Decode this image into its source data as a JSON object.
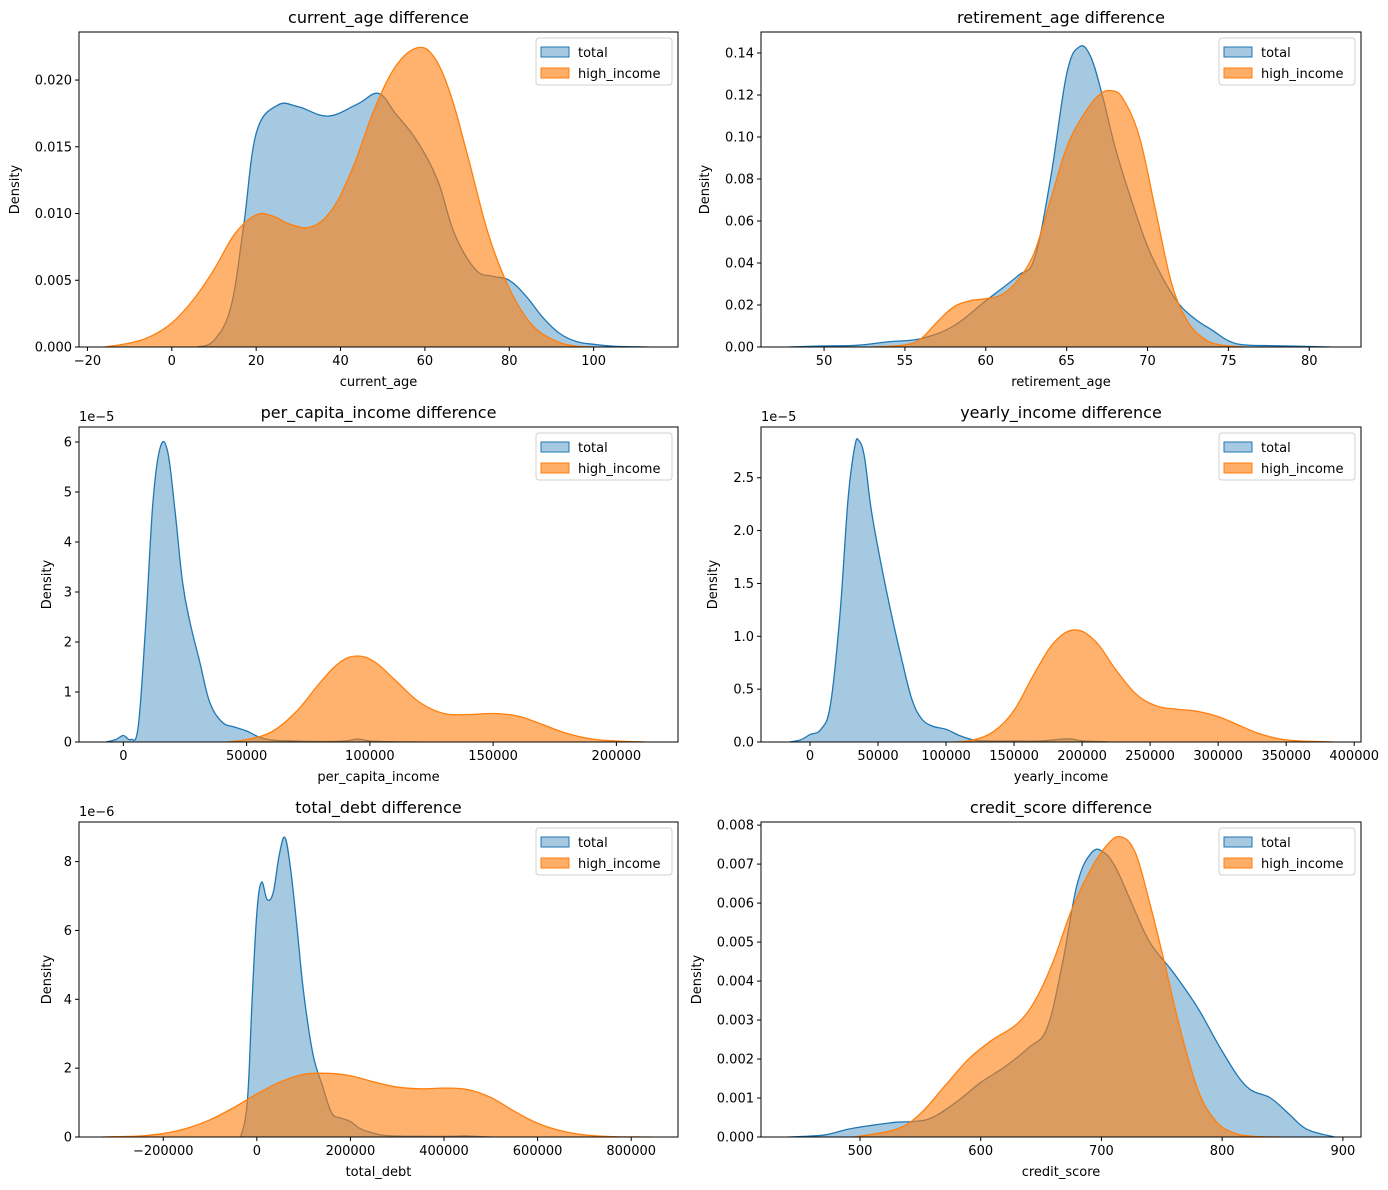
{
  "chart_data": [
    {
      "type": "area",
      "subtype": "kde",
      "title": "current_age difference",
      "xlabel": "current_age",
      "ylabel": "Density",
      "xlim": [
        -22,
        120
      ],
      "ylim": [
        0,
        0.0236
      ],
      "xticks": [
        -20,
        0,
        20,
        40,
        60,
        80,
        100
      ],
      "xtick_labels": [
        "−20",
        "0",
        "20",
        "40",
        "60",
        "80",
        "100"
      ],
      "yticks": [
        0,
        0.005,
        0.01,
        0.015,
        0.02
      ],
      "ytick_labels": [
        "0.000",
        "0.005",
        "0.010",
        "0.015",
        "0.020"
      ],
      "offset_label": "",
      "legend": [
        "total",
        "high_income"
      ],
      "legend_position": "top-right",
      "series": [
        {
          "name": "total",
          "x": [
            6,
            10,
            14,
            17,
            20,
            25,
            30,
            37,
            44,
            49,
            53,
            58,
            63,
            67,
            72,
            76,
            80,
            84,
            88,
            92,
            96,
            100,
            105,
            113
          ],
          "y": [
            0,
            0.0005,
            0.003,
            0.009,
            0.016,
            0.0181,
            0.018,
            0.0173,
            0.0182,
            0.019,
            0.0175,
            0.0155,
            0.0125,
            0.0085,
            0.0058,
            0.0053,
            0.005,
            0.0038,
            0.0022,
            0.001,
            0.0004,
            0.0002,
            5e-05,
            0
          ]
        },
        {
          "name": "high_income",
          "x": [
            -16,
            -10,
            -5,
            0,
            5,
            10,
            15,
            20,
            24,
            28,
            33,
            38,
            43,
            48,
            53,
            58,
            62,
            66,
            70,
            75,
            80,
            85,
            90,
            95,
            100
          ],
          "y": [
            0,
            0.0003,
            0.0008,
            0.0018,
            0.0035,
            0.0058,
            0.0085,
            0.0099,
            0.0098,
            0.0092,
            0.009,
            0.0103,
            0.0135,
            0.0178,
            0.021,
            0.0224,
            0.0218,
            0.019,
            0.0145,
            0.0085,
            0.0044,
            0.0018,
            0.0006,
            0.0001,
            0
          ]
        }
      ]
    },
    {
      "type": "area",
      "subtype": "kde",
      "title": "retirement_age difference",
      "xlabel": "retirement_age",
      "ylabel": "Density",
      "xlim": [
        46.1,
        83.2
      ],
      "ylim": [
        0,
        0.15
      ],
      "xticks": [
        50,
        55,
        60,
        65,
        70,
        75,
        80
      ],
      "xtick_labels": [
        "50",
        "55",
        "60",
        "65",
        "70",
        "75",
        "80"
      ],
      "yticks": [
        0,
        0.02,
        0.04,
        0.06,
        0.08,
        0.1,
        0.12,
        0.14
      ],
      "ytick_labels": [
        "0.00",
        "0.02",
        "0.04",
        "0.06",
        "0.08",
        "0.10",
        "0.12",
        "0.14"
      ],
      "offset_label": "",
      "legend": [
        "total",
        "high_income"
      ],
      "legend_position": "top-right",
      "series": [
        {
          "name": "total",
          "x": [
            47.8,
            50,
            52,
            54,
            56,
            58,
            60,
            62,
            63,
            64,
            65,
            65.8,
            66.5,
            67.2,
            68,
            69,
            70,
            71,
            72,
            73,
            74,
            75,
            76,
            78,
            81.3
          ],
          "y": [
            0,
            0.0005,
            0.0008,
            0.0025,
            0.004,
            0.01,
            0.022,
            0.034,
            0.042,
            0.08,
            0.13,
            0.143,
            0.138,
            0.12,
            0.095,
            0.07,
            0.048,
            0.032,
            0.02,
            0.013,
            0.008,
            0.003,
            0.001,
            0.0006,
            0
          ]
        },
        {
          "name": "high_income",
          "x": [
            53,
            55,
            56,
            57,
            58,
            59,
            60,
            61,
            62,
            63,
            64,
            65,
            66,
            67,
            67.8,
            68.5,
            69.5,
            70.5,
            71.5,
            72.5,
            73.5,
            74.5,
            76
          ],
          "y": [
            0,
            0.001,
            0.004,
            0.012,
            0.019,
            0.022,
            0.023,
            0.025,
            0.032,
            0.045,
            0.07,
            0.095,
            0.11,
            0.12,
            0.122,
            0.118,
            0.1,
            0.065,
            0.03,
            0.012,
            0.004,
            0.001,
            0
          ]
        }
      ]
    },
    {
      "type": "area",
      "subtype": "kde",
      "title": "per_capita_income difference",
      "xlabel": "per_capita_income",
      "ylabel": "Density",
      "xlim": [
        -18000,
        225000
      ],
      "ylim": [
        0,
        6.3e-05
      ],
      "xticks": [
        0,
        50000,
        100000,
        150000,
        200000
      ],
      "xtick_labels": [
        "0",
        "50000",
        "100000",
        "150000",
        "200000"
      ],
      "yticks": [
        0,
        1e-05,
        2e-05,
        3e-05,
        4e-05,
        5e-05,
        6e-05
      ],
      "ytick_labels": [
        "0",
        "1",
        "2",
        "3",
        "4",
        "5",
        "6"
      ],
      "offset_label": "1e−5",
      "legend": [
        "total",
        "high_income"
      ],
      "legend_position": "top-right",
      "series": [
        {
          "name": "total",
          "x": [
            -7000,
            -3000,
            0,
            3000,
            6000,
            9000,
            12000,
            15000,
            18000,
            21000,
            24000,
            27000,
            31000,
            35000,
            40000,
            45000,
            50000,
            55000,
            60000,
            70000,
            80000,
            90000,
            95000,
            100000,
            110000,
            120000
          ],
          "y": [
            0,
            5e-07,
            1.3e-06,
            5e-07,
            3e-06,
            2.3e-05,
            4.8e-05,
            5.9e-05,
            5.8e-05,
            4.6e-05,
            3.2e-05,
            2.4e-05,
            1.6e-05,
            8e-06,
            4e-06,
            3e-06,
            2.2e-06,
            1e-06,
            4e-07,
            2e-07,
            1e-07,
            2e-07,
            6e-07,
            2e-07,
            5e-08,
            0
          ]
        },
        {
          "name": "high_income",
          "x": [
            42000,
            50000,
            60000,
            70000,
            80000,
            88000,
            95000,
            102000,
            110000,
            120000,
            130000,
            140000,
            150000,
            160000,
            170000,
            180000,
            190000,
            200000,
            212000
          ],
          "y": [
            0,
            5e-07,
            2e-06,
            6e-06,
            1.2e-05,
            1.6e-05,
            1.72e-05,
            1.6e-05,
            1.25e-05,
            8e-06,
            5.7e-06,
            5.5e-06,
            5.7e-06,
            5.2e-06,
            3.5e-06,
            1.7e-06,
            6e-07,
            2e-07,
            0
          ]
        }
      ]
    },
    {
      "type": "area",
      "subtype": "kde",
      "title": "yearly_income difference",
      "xlabel": "yearly_income",
      "ylabel": "Density",
      "xlim": [
        -36000,
        405000
      ],
      "ylim": [
        0,
        2.98e-05
      ],
      "xticks": [
        0,
        50000,
        100000,
        150000,
        200000,
        250000,
        300000,
        350000,
        400000
      ],
      "xtick_labels": [
        "0",
        "50000",
        "100000",
        "150000",
        "200000",
        "250000",
        "300000",
        "350000",
        "400000"
      ],
      "yticks": [
        0,
        5e-06,
        1e-05,
        1.5e-05,
        2e-05,
        2.5e-05
      ],
      "ytick_labels": [
        "0.0",
        "0.5",
        "1.0",
        "1.5",
        "2.0",
        "2.5"
      ],
      "offset_label": "1e−5",
      "legend": [
        "total",
        "high_income"
      ],
      "legend_position": "top-right",
      "series": [
        {
          "name": "total",
          "x": [
            -15000,
            -7000,
            0,
            8000,
            15000,
            22000,
            28000,
            33000,
            36000,
            40000,
            45000,
            52000,
            60000,
            68000,
            75000,
            82000,
            90000,
            100000,
            110000,
            120000,
            130000,
            150000,
            170000,
            190000,
            200000,
            220000
          ],
          "y": [
            0,
            2e-07,
            7e-07,
            1.2e-06,
            3.5e-06,
            1.2e-05,
            2.3e-05,
            2.8e-05,
            2.85e-05,
            2.7e-05,
            2.2e-05,
            1.7e-05,
            1.2e-05,
            7.5e-06,
            4e-06,
            2.2e-06,
            1.5e-06,
            1.2e-06,
            6e-07,
            2e-07,
            1e-07,
            1e-07,
            1e-07,
            3e-07,
            1e-07,
            0
          ]
        },
        {
          "name": "high_income",
          "x": [
            107000,
            120000,
            135000,
            150000,
            165000,
            180000,
            195000,
            210000,
            225000,
            240000,
            255000,
            270000,
            285000,
            300000,
            315000,
            330000,
            345000,
            360000,
            385000
          ],
          "y": [
            0,
            2e-07,
            1e-06,
            3e-06,
            6.5e-06,
            9.5e-06,
            1.06e-05,
            9.5e-06,
            6.8e-06,
            4.5e-06,
            3.4e-06,
            3.1e-06,
            2.9e-06,
            2.4e-06,
            1.6e-06,
            8e-07,
            3e-07,
            1e-07,
            0
          ]
        }
      ]
    },
    {
      "type": "area",
      "subtype": "kde",
      "title": "total_debt difference",
      "xlabel": "total_debt",
      "ylabel": "Density",
      "xlim": [
        -380000,
        900000
      ],
      "ylim": [
        0,
        9.15e-06
      ],
      "xticks": [
        -200000,
        0,
        200000,
        400000,
        600000,
        800000
      ],
      "xtick_labels": [
        "−200000",
        "0",
        "200000",
        "400000",
        "600000",
        "800000"
      ],
      "yticks": [
        0,
        2e-06,
        4e-06,
        6e-06,
        8e-06
      ],
      "ytick_labels": [
        "0",
        "2",
        "4",
        "6",
        "8"
      ],
      "offset_label": "1e−6",
      "legend": [
        "total",
        "high_income"
      ],
      "legend_position": "top-right",
      "series": [
        {
          "name": "total",
          "x": [
            -35000,
            -25000,
            -18000,
            -10000,
            0,
            10000,
            22000,
            35000,
            48000,
            60000,
            72000,
            85000,
            100000,
            120000,
            140000,
            160000,
            180000,
            200000,
            220000,
            240000,
            270000,
            300000,
            350000,
            420000,
            450000,
            500000
          ],
          "y": [
            0,
            5e-07,
            1.5e-06,
            4e-06,
            6.5e-06,
            7.4e-06,
            6.9e-06,
            7.1e-06,
            8.2e-06,
            8.7e-06,
            7.8e-06,
            6.2e-06,
            4.2e-06,
            2.4e-06,
            1.5e-06,
            7e-07,
            5.5e-07,
            4.5e-07,
            2.5e-07,
            1.5e-07,
            5e-08,
            3e-08,
            2e-08,
            2e-08,
            3e-08,
            0
          ]
        },
        {
          "name": "high_income",
          "x": [
            -330000,
            -250000,
            -200000,
            -150000,
            -100000,
            -50000,
            0,
            50000,
            100000,
            150000,
            200000,
            250000,
            300000,
            350000,
            400000,
            450000,
            500000,
            550000,
            600000,
            650000,
            700000,
            760000,
            840000
          ],
          "y": [
            0,
            3e-08,
            1e-07,
            2.5e-07,
            5e-07,
            8.5e-07,
            1.25e-06,
            1.6e-06,
            1.82e-06,
            1.85e-06,
            1.78e-06,
            1.6e-06,
            1.45e-06,
            1.4e-06,
            1.42e-06,
            1.38e-06,
            1.15e-06,
            7.5e-07,
            4e-07,
            1.8e-07,
            6e-08,
            1e-08,
            0
          ]
        }
      ]
    },
    {
      "type": "area",
      "subtype": "kde",
      "title": "credit_score difference",
      "xlabel": "credit_score",
      "ylabel": "Density",
      "xlim": [
        418,
        915
      ],
      "ylim": [
        0,
        0.00808
      ],
      "xticks": [
        500,
        600,
        700,
        800,
        900
      ],
      "xtick_labels": [
        "500",
        "600",
        "700",
        "800",
        "900"
      ],
      "yticks": [
        0,
        0.001,
        0.002,
        0.003,
        0.004,
        0.005,
        0.006,
        0.007,
        0.008
      ],
      "ytick_labels": [
        "0.000",
        "0.001",
        "0.002",
        "0.003",
        "0.004",
        "0.005",
        "0.006",
        "0.007",
        "0.008"
      ],
      "offset_label": "",
      "legend": [
        "total",
        "high_income"
      ],
      "legend_position": "top-right",
      "series": [
        {
          "name": "total",
          "x": [
            440,
            470,
            490,
            510,
            530,
            545,
            560,
            580,
            600,
            620,
            640,
            655,
            668,
            680,
            692,
            702,
            712,
            725,
            740,
            760,
            780,
            800,
            820,
            840,
            855,
            870,
            893
          ],
          "y": [
            0,
            5e-05,
            0.0002,
            0.0003,
            0.00038,
            0.0004,
            0.0005,
            0.0009,
            0.0014,
            0.0018,
            0.0023,
            0.0028,
            0.0045,
            0.0065,
            0.0073,
            0.0073,
            0.0069,
            0.006,
            0.005,
            0.0042,
            0.0033,
            0.0022,
            0.0013,
            0.001,
            0.0006,
            0.0002,
            0
          ]
        },
        {
          "name": "high_income",
          "x": [
            495,
            530,
            550,
            570,
            590,
            610,
            630,
            645,
            660,
            675,
            690,
            705,
            716,
            728,
            740,
            752,
            765,
            780,
            795,
            810,
            825,
            848
          ],
          "y": [
            0,
            0.0002,
            0.0006,
            0.0013,
            0.002,
            0.0025,
            0.0029,
            0.0035,
            0.0045,
            0.0058,
            0.0068,
            0.0075,
            0.0077,
            0.0073,
            0.006,
            0.0045,
            0.0028,
            0.0012,
            0.0004,
            0.0001,
            2e-05,
            0
          ]
        }
      ]
    }
  ],
  "colors": {
    "total_fill": "#a6c8e1",
    "total_line": "#1f77b4",
    "high_income_fill": "#ffae68",
    "high_income_line": "#ff7f0e"
  }
}
